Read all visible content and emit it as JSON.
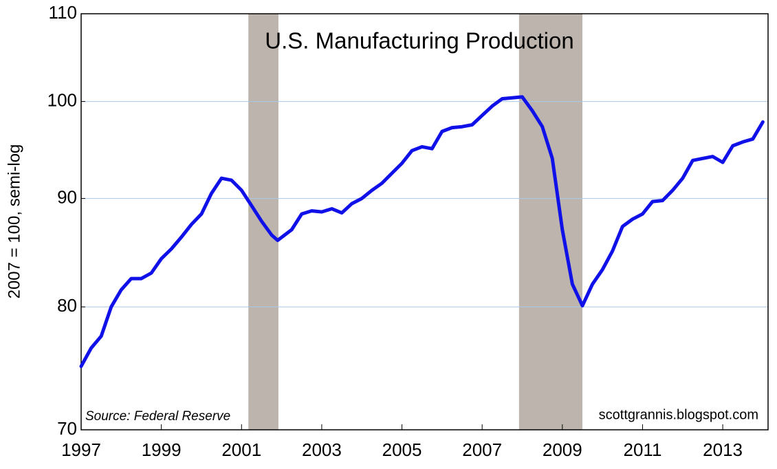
{
  "chart_data": {
    "type": "line",
    "title": "U.S. Manufacturing Production",
    "y_label": "2007 = 100, semi-log",
    "source": "Source: Federal Reserve",
    "watermark": "scottgrannis.blogspot.com",
    "color": "#1010e8",
    "grid_color": "#a8c8e8",
    "shade_color": "#bdb5ad",
    "log_scale": true,
    "grid": true,
    "xlim": [
      1997,
      2014.13
    ],
    "xticks": [
      1997,
      1999,
      2001,
      2003,
      2005,
      2007,
      2009,
      2011,
      2013
    ],
    "ylim": [
      70,
      110
    ],
    "yticks": [
      70,
      80,
      90,
      100,
      110
    ],
    "shaded_periods": [
      [
        2001.17,
        2001.92
      ],
      [
        2007.92,
        2009.5
      ]
    ],
    "x": [
      1997.0,
      1997.25,
      1997.5,
      1997.75,
      1998.0,
      1998.25,
      1998.5,
      1998.75,
      1999.0,
      1999.25,
      1999.5,
      1999.75,
      2000.0,
      2000.25,
      2000.5,
      2000.75,
      2001.0,
      2001.25,
      2001.5,
      2001.75,
      2001.9,
      2002.25,
      2002.5,
      2002.75,
      2003.0,
      2003.25,
      2003.5,
      2003.75,
      2004.0,
      2004.25,
      2004.5,
      2004.75,
      2005.0,
      2005.25,
      2005.5,
      2005.75,
      2006.0,
      2006.25,
      2006.5,
      2006.75,
      2007.0,
      2007.25,
      2007.5,
      2007.75,
      2008.0,
      2008.25,
      2008.5,
      2008.75,
      2009.0,
      2009.25,
      2009.5,
      2009.75,
      2010.0,
      2010.25,
      2010.5,
      2010.75,
      2011.0,
      2011.25,
      2011.5,
      2011.75,
      2012.0,
      2012.25,
      2012.5,
      2012.75,
      2013.0,
      2013.25,
      2013.5,
      2013.75,
      2014.0
    ],
    "values": [
      75,
      76.5,
      77.5,
      80,
      81.5,
      82.5,
      82.5,
      83,
      84.3,
      85.2,
      86.3,
      87.5,
      88.5,
      90.5,
      92,
      91.8,
      90.8,
      89.3,
      87.8,
      86.5,
      86,
      87,
      88.5,
      88.8,
      88.7,
      89,
      88.6,
      89.5,
      90,
      90.8,
      91.5,
      92.5,
      93.5,
      94.8,
      95.2,
      95,
      96.8,
      97.2,
      97.3,
      97.5,
      98.5,
      99.5,
      100.3,
      100.4,
      100.5,
      99,
      97.3,
      94,
      87,
      82,
      80.1,
      82,
      83.3,
      85,
      87.3,
      88,
      88.5,
      89.7,
      89.8,
      90.8,
      92,
      93.8,
      94,
      94.2,
      93.6,
      95.3,
      95.7,
      96,
      97.8
    ]
  }
}
